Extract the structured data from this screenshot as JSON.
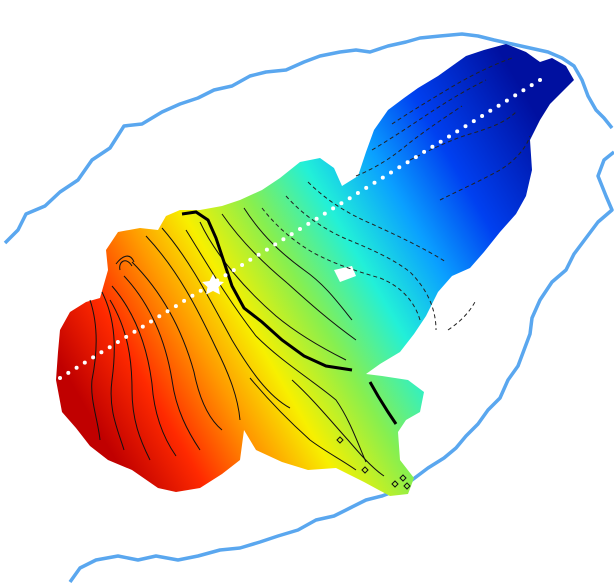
{
  "map": {
    "type": "contour-heatmap",
    "colormap": "jet",
    "colors": {
      "boundary": "#5aa7ef",
      "profile": "#ffffff",
      "marker": "#ffffff",
      "contour_thin": "#111111",
      "contour_dashed": "#222222",
      "fault": "#000000",
      "background": "#ffffff"
    },
    "legend": "none",
    "title": "",
    "labels": [],
    "marker_icon": "star-icon",
    "profile_style": "dotted",
    "contour_styles": [
      "solid",
      "dashed"
    ]
  }
}
